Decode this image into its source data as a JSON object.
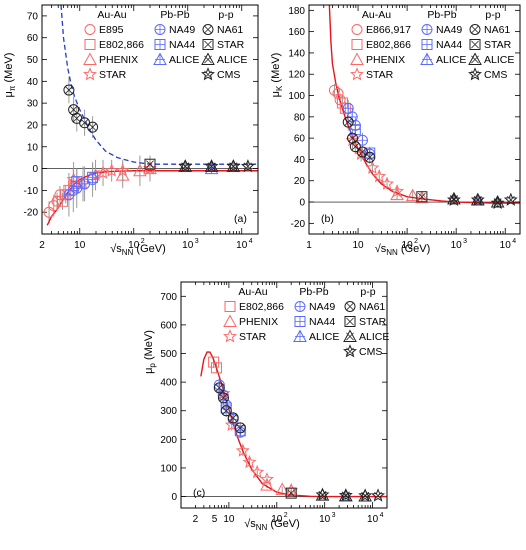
{
  "colors": {
    "axis": "#000000",
    "fit": "#e8141a",
    "fit_dashed": "#1f3bd8",
    "auau": "#ff6666",
    "pbpb": "#5b6bff",
    "pp": "#222222",
    "errbar": "#9a9a9a"
  },
  "legend_headers": [
    "Au-Au",
    "Pb-Pb",
    "p-p"
  ],
  "chart_data": [
    {
      "type": "scatter",
      "panel_label": "(a)",
      "xlabel_main": "√s",
      "xlabel_sub": "NN",
      "xlabel_unit": " (GeV)",
      "ylabel_main": "μ",
      "ylabel_sub": "π",
      "ylabel_unit": " (MeV)",
      "xscale": "log",
      "xlim": [
        2,
        20000
      ],
      "ylim": [
        -30,
        75
      ],
      "xticks": [
        2,
        5,
        10,
        20,
        50,
        100,
        200,
        500,
        1000,
        2000,
        5000,
        10000
      ],
      "xtick_labels": [
        {
          "v": 2,
          "t": "2"
        },
        {
          "v": 10,
          "t": "10"
        },
        {
          "v": 100,
          "t": "10"
        },
        {
          "v": 1000,
          "t": "10"
        },
        {
          "v": 10000,
          "t": "10"
        }
      ],
      "xtick_exps": [
        "",
        "",
        "2",
        "3",
        "4"
      ],
      "yticks": [
        -20,
        -10,
        0,
        10,
        20,
        30,
        40,
        50,
        60,
        70
      ],
      "legend": [
        [
          "E895",
          "NA49",
          "NA61"
        ],
        [
          "E802,866",
          "NA44",
          "STAR"
        ],
        [
          "PHENIX",
          "ALICE",
          "ALICE"
        ],
        [
          "STAR",
          "",
          "CMS"
        ]
      ],
      "legend_markers": [
        [
          "circle",
          "circle-plus",
          "circle-x"
        ],
        [
          "square",
          "square-plus",
          "square-x"
        ],
        [
          "triangle",
          "triangle-plus",
          "triangle-x"
        ],
        [
          "star",
          "",
          "star-x"
        ]
      ],
      "series": [
        {
          "group": "auau",
          "marker": "circle",
          "x": [
            2.7,
            3.3,
            3.8,
            4.3
          ],
          "y": [
            -20,
            -17,
            -15,
            -12
          ],
          "err": [
            5,
            5,
            4,
            4
          ]
        },
        {
          "group": "auau",
          "marker": "square",
          "x": [
            4.8,
            5.5,
            6.3,
            7.7
          ],
          "y": [
            -15,
            -12,
            -10,
            -8
          ],
          "err": [
            4,
            4,
            4,
            4
          ]
        },
        {
          "group": "auau",
          "marker": "triangle",
          "x": [
            62.4,
            130,
            200
          ],
          "y": [
            -3,
            -1,
            0
          ],
          "err": [
            6,
            7,
            6
          ]
        },
        {
          "group": "auau",
          "marker": "star",
          "x": [
            7.7,
            11.5,
            19.6,
            27,
            39,
            62.4,
            200
          ],
          "y": [
            -5,
            -7,
            -3,
            -2,
            -1,
            -1,
            0
          ],
          "err": [
            8,
            8,
            7,
            6,
            5,
            5,
            4
          ]
        },
        {
          "group": "pbpb",
          "marker": "circle-plus",
          "x": [
            6.3,
            7.6,
            8.8,
            12.3,
            17.3
          ],
          "y": [
            -12,
            -10,
            -9,
            -7,
            -5
          ],
          "err": [
            10,
            10,
            9,
            8,
            8
          ]
        },
        {
          "group": "pbpb",
          "marker": "square-plus",
          "x": [
            8.8,
            17.3
          ],
          "y": [
            -6,
            -4
          ],
          "err": [
            6,
            6
          ]
        },
        {
          "group": "pbpb",
          "marker": "triangle-plus",
          "x": [
            2760
          ],
          "y": [
            0
          ],
          "err": [
            2
          ]
        },
        {
          "group": "pp",
          "marker": "circle-x",
          "x": [
            6.3,
            7.7,
            8.8,
            12.3,
            17.3
          ],
          "y": [
            36,
            27,
            23,
            21,
            19
          ],
          "err": [
            6,
            6,
            6,
            6,
            5
          ]
        },
        {
          "group": "pp",
          "marker": "square-x",
          "x": [
            200
          ],
          "y": [
            2
          ],
          "err": [
            3
          ]
        },
        {
          "group": "pp",
          "marker": "triangle-x",
          "x": [
            900,
            2760,
            7000
          ],
          "y": [
            1,
            1,
            1
          ],
          "err": [
            2,
            2,
            2
          ]
        },
        {
          "group": "pp",
          "marker": "star-x",
          "x": [
            900,
            2760,
            7000,
            13000
          ],
          "y": [
            1,
            1,
            1,
            1
          ],
          "err": [
            2,
            2,
            2,
            2
          ]
        }
      ],
      "fit_solid": {
        "x": [
          2.5,
          3,
          4,
          5,
          6,
          8,
          10,
          15,
          20,
          30,
          50,
          80,
          100,
          200,
          500,
          1000,
          5000,
          20000
        ],
        "y": [
          -26,
          -22,
          -18,
          -14,
          -11,
          -7,
          -5,
          -3,
          -2,
          -1.5,
          -1.2,
          -1.1,
          -1,
          -1,
          -1,
          -1,
          -1,
          -1
        ]
      },
      "fit_dashed": {
        "x": [
          4.5,
          5,
          6,
          7,
          8,
          10,
          12,
          15,
          20,
          30,
          50,
          100,
          200,
          500,
          1000,
          5000,
          20000
        ],
        "y": [
          75,
          60,
          46,
          38,
          33,
          27,
          23,
          18,
          13,
          8,
          5,
          3,
          2,
          2,
          2,
          2,
          2
        ]
      }
    },
    {
      "type": "scatter",
      "panel_label": "(b)",
      "xlabel_main": "√s",
      "xlabel_sub": "NN",
      "xlabel_unit": " (GeV)",
      "ylabel_main": "μ",
      "ylabel_sub": "K",
      "ylabel_unit": " (MeV)",
      "xscale": "log",
      "xlim": [
        1,
        20000
      ],
      "ylim": [
        -30,
        185
      ],
      "xticks": [
        1,
        10,
        100,
        1000,
        10000
      ],
      "xtick_labels": [
        {
          "v": 1,
          "t": "1"
        },
        {
          "v": 10,
          "t": "10"
        },
        {
          "v": 100,
          "t": "10"
        },
        {
          "v": 1000,
          "t": "10"
        },
        {
          "v": 10000,
          "t": "10"
        }
      ],
      "xtick_exps": [
        "",
        "",
        "2",
        "3",
        "4"
      ],
      "yticks": [
        -20,
        0,
        20,
        40,
        60,
        80,
        100,
        120,
        140,
        160,
        180
      ],
      "legend": [
        [
          "E866,917",
          "NA49",
          "NA61"
        ],
        [
          "E802,866",
          "NA44",
          "STAR"
        ],
        [
          "PHENIX",
          "ALICE",
          "ALICE"
        ],
        [
          "STAR",
          "",
          "CMS"
        ]
      ],
      "legend_markers": [
        [
          "circle",
          "circle-plus",
          "circle-x"
        ],
        [
          "square",
          "square-plus",
          "square-x"
        ],
        [
          "triangle",
          "triangle-plus",
          "triangle-x"
        ],
        [
          "star",
          "",
          "star-x"
        ]
      ],
      "series": [
        {
          "group": "auau",
          "marker": "circle",
          "x": [
            3.3,
            3.9,
            4.3
          ],
          "y": [
            105,
            102,
            96
          ],
          "err": [
            6,
            6,
            6
          ]
        },
        {
          "group": "auau",
          "marker": "square",
          "x": [
            4.8,
            5.5
          ],
          "y": [
            93,
            88
          ],
          "err": [
            6,
            6
          ]
        },
        {
          "group": "auau",
          "marker": "triangle",
          "x": [
            62.4,
            130,
            200
          ],
          "y": [
            7,
            6,
            4
          ],
          "err": [
            5,
            5,
            5
          ]
        },
        {
          "group": "auau",
          "marker": "star",
          "x": [
            7.7,
            11.5,
            19.6,
            27,
            39,
            62.4
          ],
          "y": [
            58,
            45,
            32,
            24,
            17,
            10
          ],
          "err": [
            8,
            7,
            6,
            6,
            5,
            5
          ]
        },
        {
          "group": "pbpb",
          "marker": "circle-plus",
          "x": [
            6.3,
            7.6,
            8.8,
            12.3,
            17.3
          ],
          "y": [
            88,
            80,
            72,
            58,
            45
          ],
          "err": [
            8,
            8,
            8,
            7,
            6
          ]
        },
        {
          "group": "pbpb",
          "marker": "square-plus",
          "x": [
            8.8,
            17.3
          ],
          "y": [
            68,
            46
          ],
          "err": [
            7,
            6
          ]
        },
        {
          "group": "pbpb",
          "marker": "triangle-plus",
          "x": [
            2760
          ],
          "y": [
            2
          ],
          "err": [
            3
          ]
        },
        {
          "group": "pp",
          "marker": "circle-x",
          "x": [
            6.3,
            7.7,
            8.8,
            12.3,
            17.3
          ],
          "y": [
            75,
            60,
            52,
            47,
            42
          ],
          "err": [
            8,
            8,
            7,
            7,
            6
          ]
        },
        {
          "group": "pp",
          "marker": "square-x",
          "x": [
            200
          ],
          "y": [
            5
          ],
          "err": [
            4
          ]
        },
        {
          "group": "pp",
          "marker": "triangle-x",
          "x": [
            900,
            2760,
            7000
          ],
          "y": [
            3,
            2,
            0
          ],
          "err": [
            3,
            3,
            3
          ]
        },
        {
          "group": "pp",
          "marker": "star-x",
          "x": [
            900,
            2760,
            7000,
            13000
          ],
          "y": [
            2,
            2,
            -1,
            2
          ],
          "err": [
            3,
            3,
            3,
            3
          ]
        }
      ],
      "fit_solid": {
        "x": [
          2.6,
          2.8,
          3,
          3.5,
          4,
          5,
          6,
          8,
          10,
          15,
          20,
          30,
          50,
          100,
          200,
          500,
          1000,
          5000,
          20000
        ],
        "y": [
          185,
          150,
          130,
          112,
          100,
          85,
          74,
          60,
          50,
          35,
          26,
          17,
          10,
          5,
          3,
          1,
          0,
          -1,
          -1
        ]
      }
    },
    {
      "type": "scatter",
      "panel_label": "(c)",
      "xlabel_main": "√s",
      "xlabel_sub": "NN",
      "xlabel_unit": " (GeV)",
      "ylabel_main": "μ",
      "ylabel_sub": "p",
      "ylabel_unit": " (MeV)",
      "xscale": "log",
      "xlim": [
        1,
        20000
      ],
      "ylim": [
        -40,
        750
      ],
      "xticks": [
        1,
        10,
        100,
        1000,
        10000
      ],
      "xtick_labels": [
        {
          "v": 2,
          "t": "2"
        },
        {
          "v": 5,
          "t": "5"
        },
        {
          "v": 10,
          "t": "10"
        },
        {
          "v": 100,
          "t": "10"
        },
        {
          "v": 1000,
          "t": "10"
        },
        {
          "v": 10000,
          "t": "10"
        }
      ],
      "xtick_exps": [
        "",
        "",
        "",
        "2",
        "3",
        "4"
      ],
      "yticks": [
        0,
        100,
        200,
        300,
        400,
        500,
        600,
        700
      ],
      "legend": [
        [
          "E802,866",
          "NA49",
          "NA61"
        ],
        [
          "PHENIX",
          "NA44",
          "STAR"
        ],
        [
          "STAR",
          "ALICE",
          "ALICE"
        ],
        [
          "",
          "",
          "CMS"
        ]
      ],
      "legend_markers": [
        [
          "square",
          "circle-plus",
          "circle-x"
        ],
        [
          "triangle",
          "square-plus",
          "square-x"
        ],
        [
          "star",
          "triangle-plus",
          "triangle-x"
        ],
        [
          "",
          "",
          "star-x"
        ]
      ],
      "series": [
        {
          "group": "auau",
          "marker": "square",
          "x": [
            4.8,
            5.5
          ],
          "y": [
            470,
            450
          ],
          "err": [
            20,
            20
          ]
        },
        {
          "group": "auau",
          "marker": "triangle",
          "x": [
            62.4,
            130,
            200
          ],
          "y": [
            40,
            25,
            20
          ],
          "err": [
            10,
            10,
            10
          ]
        },
        {
          "group": "auau",
          "marker": "star",
          "x": [
            7.7,
            11.5,
            19.6,
            27,
            39,
            62.4,
            200
          ],
          "y": [
            360,
            250,
            160,
            120,
            85,
            60,
            22
          ],
          "err": [
            25,
            20,
            18,
            15,
            12,
            10,
            8
          ]
        },
        {
          "group": "pbpb",
          "marker": "circle-plus",
          "x": [
            6.3,
            7.6,
            8.8,
            12.3,
            17.3
          ],
          "y": [
            390,
            355,
            320,
            270,
            225
          ],
          "err": [
            25,
            25,
            22,
            20,
            18
          ]
        },
        {
          "group": "pbpb",
          "marker": "square-plus",
          "x": [
            8.8,
            17.3
          ],
          "y": [
            310,
            230
          ],
          "err": [
            20,
            18
          ]
        },
        {
          "group": "pbpb",
          "marker": "triangle-plus",
          "x": [
            2760
          ],
          "y": [
            2
          ],
          "err": [
            5
          ]
        },
        {
          "group": "pp",
          "marker": "circle-x",
          "x": [
            6.3,
            7.7,
            8.8,
            12.3,
            17.3
          ],
          "y": [
            380,
            345,
            300,
            275,
            240
          ],
          "err": [
            25,
            25,
            22,
            20,
            18
          ]
        },
        {
          "group": "pp",
          "marker": "square-x",
          "x": [
            200
          ],
          "y": [
            12
          ],
          "err": [
            8
          ]
        },
        {
          "group": "pp",
          "marker": "triangle-x",
          "x": [
            900,
            2760,
            7000
          ],
          "y": [
            5,
            3,
            2
          ],
          "err": [
            5,
            5,
            5
          ]
        },
        {
          "group": "pp",
          "marker": "star-x",
          "x": [
            900,
            2760,
            7000,
            13000
          ],
          "y": [
            6,
            4,
            3,
            3
          ],
          "err": [
            5,
            5,
            5,
            5
          ]
        }
      ],
      "fit_solid": {
        "x": [
          2.6,
          3,
          3.5,
          4,
          4.5,
          5,
          6,
          7,
          8,
          10,
          12,
          15,
          20,
          30,
          50,
          100,
          200,
          500,
          1000,
          5000,
          20000
        ],
        "y": [
          420,
          480,
          505,
          505,
          490,
          470,
          430,
          395,
          360,
          305,
          260,
          210,
          155,
          95,
          45,
          15,
          5,
          1,
          0,
          0,
          0
        ]
      }
    }
  ]
}
